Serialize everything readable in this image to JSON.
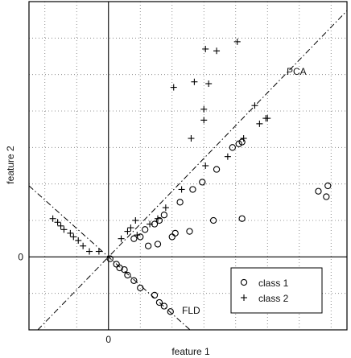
{
  "chart_data": {
    "type": "scatter",
    "title": "",
    "xlabel": "feature 1",
    "ylabel": "feature 2",
    "xlim": [
      -2.5,
      7.5
    ],
    "ylim": [
      -2.0,
      7.0
    ],
    "x_ticks": [
      0
    ],
    "y_ticks": [
      0
    ],
    "x_tick_labels": [
      "0"
    ],
    "y_tick_labels": [
      "0"
    ],
    "grid": true,
    "legend_position": "bottom-right",
    "series": [
      {
        "name": "class 1",
        "marker": "o",
        "points": [
          [
            0.05,
            -0.05
          ],
          [
            0.25,
            -0.2
          ],
          [
            0.35,
            -0.3
          ],
          [
            0.5,
            -0.35
          ],
          [
            0.6,
            -0.5
          ],
          [
            0.8,
            -0.65
          ],
          [
            1.0,
            -0.85
          ],
          [
            1.45,
            -1.05
          ],
          [
            1.6,
            -1.25
          ],
          [
            1.75,
            -1.35
          ],
          [
            1.95,
            -1.5
          ],
          [
            0.8,
            0.5
          ],
          [
            1.0,
            0.55
          ],
          [
            1.15,
            0.75
          ],
          [
            1.45,
            0.9
          ],
          [
            1.6,
            1.0
          ],
          [
            1.75,
            1.15
          ],
          [
            2.25,
            1.5
          ],
          [
            2.65,
            1.85
          ],
          [
            2.95,
            2.05
          ],
          [
            3.4,
            2.4
          ],
          [
            3.9,
            3.0
          ],
          [
            4.1,
            3.1
          ],
          [
            4.2,
            3.15
          ],
          [
            1.25,
            0.3
          ],
          [
            1.55,
            0.35
          ],
          [
            2.0,
            0.55
          ],
          [
            2.1,
            0.65
          ],
          [
            2.55,
            0.7
          ],
          [
            3.3,
            1.0
          ],
          [
            4.2,
            1.05
          ],
          [
            6.6,
            1.8
          ],
          [
            6.85,
            1.65
          ],
          [
            6.9,
            1.95
          ]
        ]
      },
      {
        "name": "class 2",
        "marker": "+",
        "points": [
          [
            -1.75,
            1.05
          ],
          [
            -1.6,
            0.95
          ],
          [
            -1.5,
            0.85
          ],
          [
            -1.4,
            0.75
          ],
          [
            -1.2,
            0.65
          ],
          [
            -1.1,
            0.55
          ],
          [
            -0.95,
            0.45
          ],
          [
            -0.8,
            0.3
          ],
          [
            -0.6,
            0.15
          ],
          [
            -0.3,
            0.15
          ],
          [
            0.4,
            0.5
          ],
          [
            0.6,
            0.7
          ],
          [
            0.7,
            0.8
          ],
          [
            0.9,
            0.6
          ],
          [
            0.85,
            1.0
          ],
          [
            1.3,
            0.9
          ],
          [
            1.55,
            1.05
          ],
          [
            1.8,
            1.35
          ],
          [
            2.3,
            1.85
          ],
          [
            3.05,
            2.5
          ],
          [
            3.75,
            2.75
          ],
          [
            4.25,
            3.25
          ],
          [
            4.75,
            3.65
          ],
          [
            4.95,
            3.8
          ],
          [
            2.6,
            3.25
          ],
          [
            3.0,
            3.75
          ],
          [
            5.0,
            3.8
          ],
          [
            3.0,
            4.05
          ],
          [
            2.7,
            4.8
          ],
          [
            2.05,
            4.65
          ],
          [
            3.05,
            5.7
          ],
          [
            3.4,
            5.65
          ],
          [
            4.6,
            4.15
          ],
          [
            4.05,
            5.9
          ],
          [
            3.15,
            4.75
          ]
        ]
      }
    ],
    "lines": [
      {
        "label": "PCA",
        "style": "dash-dot",
        "slope": 0.9,
        "intercept": 0
      },
      {
        "label": "FLD",
        "style": "dash-dot",
        "slope": -0.78,
        "intercept": 0
      }
    ]
  }
}
